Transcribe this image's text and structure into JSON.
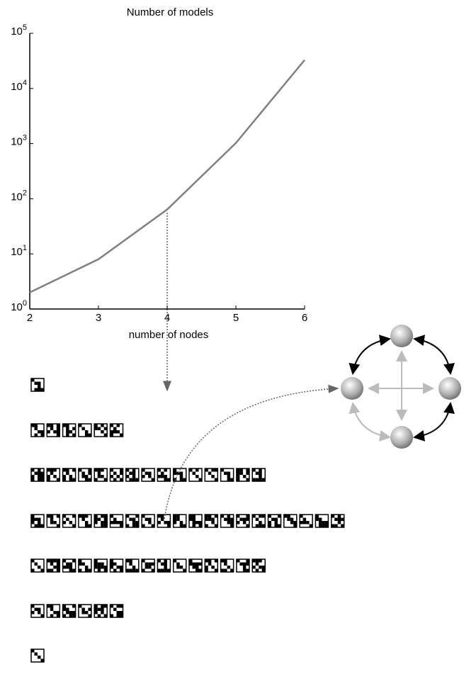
{
  "chart_data": {
    "type": "line",
    "title": "Number of models",
    "x_label": "number of nodes",
    "x": [
      2,
      3,
      4,
      5,
      6
    ],
    "series": [
      {
        "color": "#808080",
        "values": [
          2,
          8,
          64,
          1024,
          32768
        ]
      }
    ],
    "xlim": [
      2,
      6
    ],
    "xticks": [
      2,
      3,
      4,
      5,
      6
    ],
    "ylim": [
      1,
      100000
    ],
    "log_y": true,
    "yticks": [
      {
        "value": 1,
        "label": "10^0"
      },
      {
        "value": 10,
        "label": "10^1"
      },
      {
        "value": 100,
        "label": "10^2"
      },
      {
        "value": 1000,
        "label": "10^3"
      },
      {
        "value": 10000,
        "label": "10^4"
      },
      {
        "value": 100000,
        "label": "10^5"
      }
    ]
  }
}
